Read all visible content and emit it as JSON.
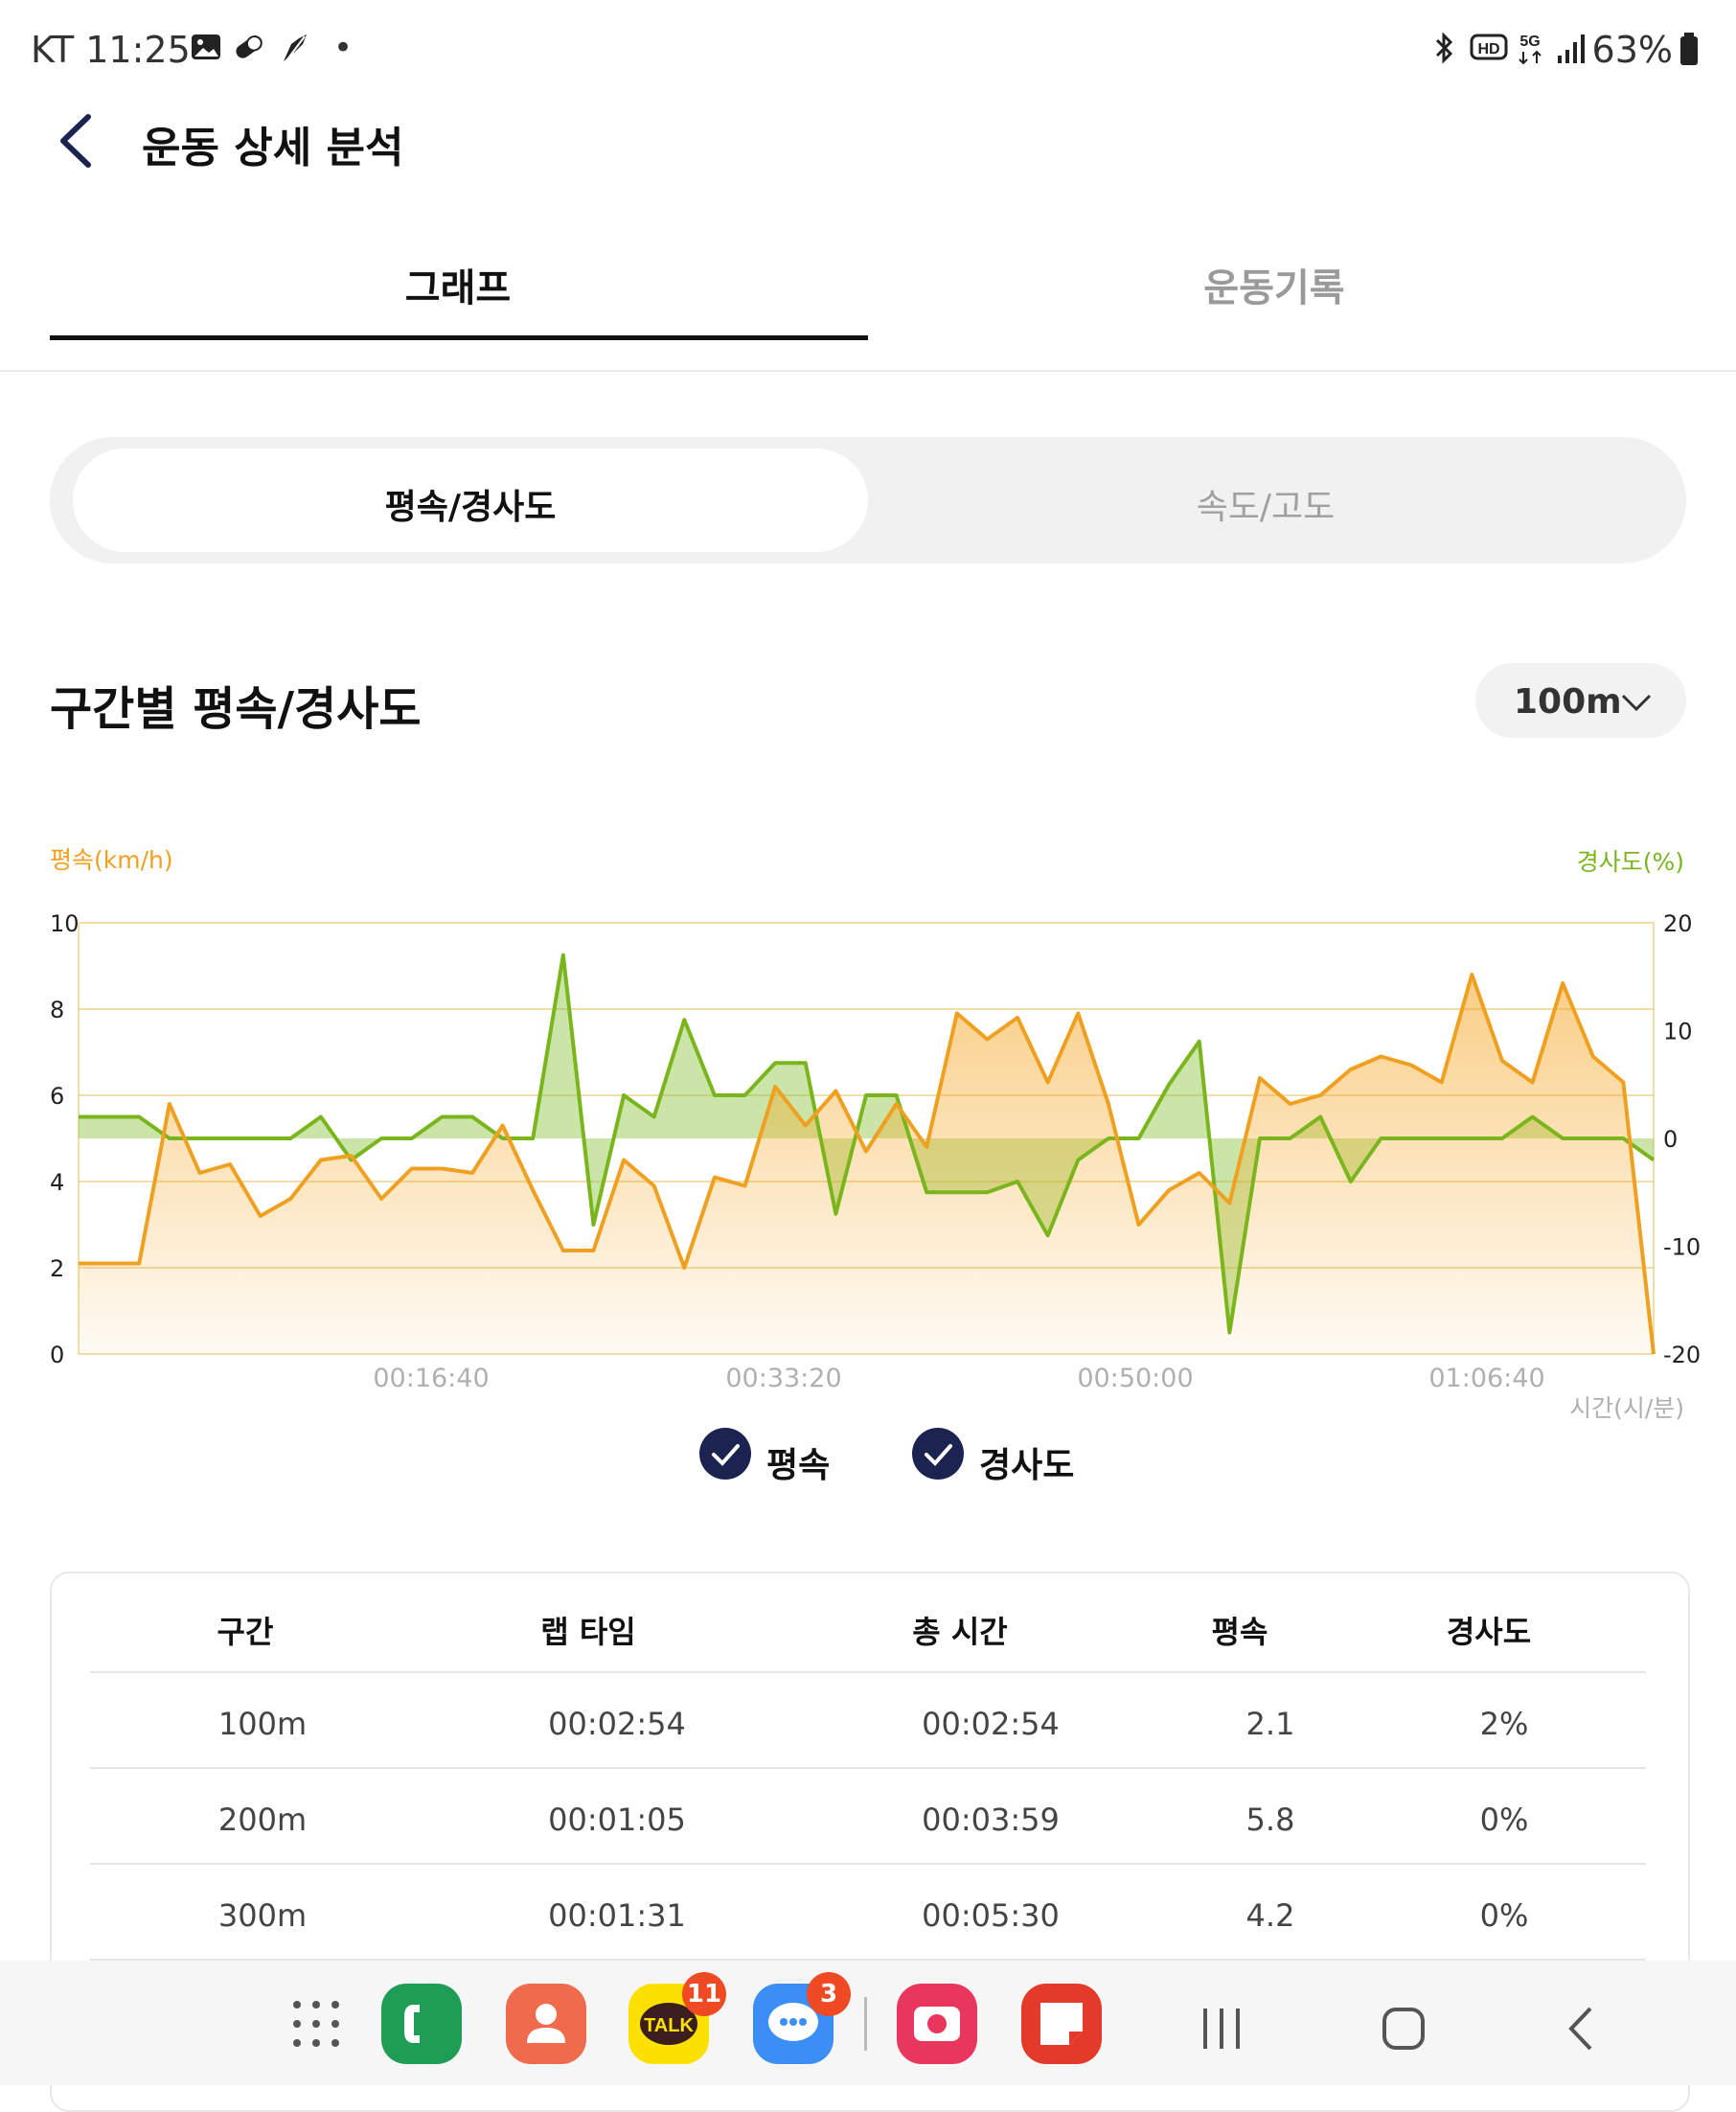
{
  "status_bar": {
    "carrier_time": "KT 11:25",
    "dot": "•",
    "battery": "63%"
  },
  "header": {
    "title": "운동 상세 분석"
  },
  "tabs": [
    {
      "label": "그래프",
      "active": true
    },
    {
      "label": "운동기록",
      "active": false
    }
  ],
  "segment": {
    "options": [
      "평속/경사도",
      "속도/고도"
    ],
    "selected": "평속/경사도"
  },
  "section": {
    "title": "구간별 평속/경사도",
    "interval": "100m"
  },
  "colors": {
    "speed": "#f0a020",
    "slope": "#7ab51d",
    "navy": "#1b2350"
  },
  "chart_data": {
    "type": "line",
    "left_axis_label": "평속(km/h)",
    "right_axis_label": "경사도(%)",
    "x_axis_label": "시간(시/분)",
    "left_ticks": [
      "10",
      "8",
      "6",
      "4",
      "2",
      "0"
    ],
    "right_ticks": [
      "20",
      "10",
      "0",
      "-10",
      "-20"
    ],
    "x_ticks": [
      "00:16:40",
      "00:33:20",
      "00:50:00",
      "01:06:40"
    ],
    "left_range": [
      0,
      10
    ],
    "right_range": [
      -20,
      20
    ],
    "series": [
      {
        "name": "평속",
        "axis": "left",
        "values": [
          2.1,
          2.1,
          2.1,
          5.8,
          4.2,
          4.4,
          3.2,
          3.6,
          4.5,
          4.6,
          3.6,
          4.3,
          4.3,
          4.2,
          5.3,
          3.8,
          2.4,
          2.4,
          4.5,
          3.9,
          2.0,
          4.1,
          3.9,
          6.2,
          5.3,
          6.1,
          4.7,
          5.8,
          4.8,
          7.9,
          7.3,
          7.8,
          6.3,
          7.9,
          5.8,
          3.0,
          3.8,
          4.2,
          3.5,
          6.4,
          5.8,
          6.0,
          6.6,
          6.9,
          6.7,
          6.3,
          8.8,
          6.8,
          6.3,
          8.6,
          6.9,
          6.3,
          0.0
        ]
      },
      {
        "name": "경사도",
        "axis": "right",
        "values": [
          2,
          2,
          2,
          0,
          0,
          0,
          0,
          0,
          2,
          -2,
          0,
          0,
          2,
          2,
          0,
          0,
          17,
          -8,
          4,
          2,
          11,
          4,
          4,
          7,
          7,
          -7,
          4,
          4,
          -5,
          -5,
          -5,
          -4,
          -9,
          -2,
          0,
          0,
          5,
          9,
          -18,
          0,
          0,
          2,
          -4,
          0,
          0,
          0,
          0,
          0,
          2,
          0,
          0,
          0,
          -2
        ]
      }
    ]
  },
  "legend": [
    {
      "label": "평속",
      "checked": true
    },
    {
      "label": "경사도",
      "checked": true
    }
  ],
  "table": {
    "headers": [
      "구간",
      "랩 타임",
      "총 시간",
      "평속",
      "경사도"
    ],
    "rows": [
      [
        "100m",
        "00:02:54",
        "00:02:54",
        "2.1",
        "2%"
      ],
      [
        "200m",
        "00:01:05",
        "00:03:59",
        "5.8",
        "0%"
      ],
      [
        "300m",
        "00:01:31",
        "00:05:30",
        "4.2",
        "0%"
      ]
    ]
  },
  "dock": {
    "apps": [
      {
        "name": "phone",
        "color": "#1f9d55",
        "badge": ""
      },
      {
        "name": "contacts",
        "color": "#f06a4c",
        "badge": ""
      },
      {
        "name": "kakaotalk",
        "color": "#fae100",
        "label": "TALK",
        "badge": "11"
      },
      {
        "name": "messages",
        "color": "#3a8ef6",
        "badge": "3"
      },
      {
        "name": "camera",
        "color": "#e8365d",
        "badge": ""
      },
      {
        "name": "notes",
        "color": "#e33a2c",
        "badge": ""
      }
    ]
  }
}
